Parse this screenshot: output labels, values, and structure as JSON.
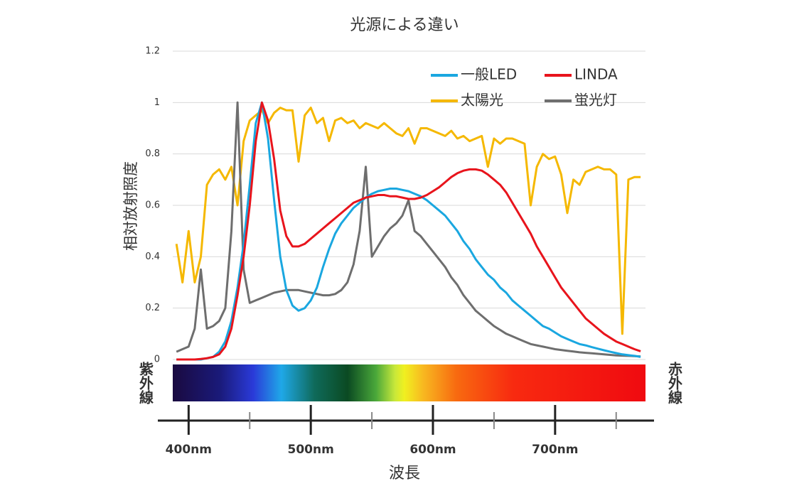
{
  "chart_data": {
    "type": "line",
    "title": "光源による違い",
    "x_label": "波長",
    "y_label": "相対放射照度",
    "left_band_label": "紫外線",
    "right_band_label": "赤外線",
    "x": [
      390,
      395,
      400,
      405,
      410,
      415,
      420,
      425,
      430,
      435,
      440,
      445,
      450,
      455,
      460,
      465,
      470,
      475,
      480,
      485,
      490,
      495,
      500,
      505,
      510,
      515,
      520,
      525,
      530,
      535,
      540,
      545,
      550,
      555,
      560,
      565,
      570,
      575,
      580,
      585,
      590,
      595,
      600,
      605,
      610,
      615,
      620,
      625,
      630,
      635,
      640,
      645,
      650,
      655,
      660,
      665,
      670,
      675,
      680,
      685,
      690,
      695,
      700,
      705,
      710,
      715,
      720,
      725,
      730,
      735,
      740,
      745,
      750,
      755,
      760,
      765,
      770
    ],
    "series": [
      {
        "name": "一般LED",
        "color": "#1aa7e0",
        "values": [
          0,
          0,
          0,
          0,
          0,
          0.005,
          0.01,
          0.03,
          0.07,
          0.15,
          0.28,
          0.45,
          0.68,
          0.92,
          1.0,
          0.86,
          0.62,
          0.4,
          0.27,
          0.21,
          0.19,
          0.2,
          0.23,
          0.28,
          0.36,
          0.43,
          0.49,
          0.53,
          0.56,
          0.59,
          0.61,
          0.63,
          0.645,
          0.655,
          0.66,
          0.665,
          0.665,
          0.66,
          0.655,
          0.645,
          0.635,
          0.62,
          0.6,
          0.58,
          0.56,
          0.53,
          0.5,
          0.46,
          0.43,
          0.39,
          0.36,
          0.33,
          0.31,
          0.28,
          0.26,
          0.23,
          0.21,
          0.19,
          0.17,
          0.15,
          0.13,
          0.12,
          0.105,
          0.09,
          0.08,
          0.07,
          0.06,
          0.055,
          0.048,
          0.042,
          0.036,
          0.03,
          0.025,
          0.02,
          0.017,
          0.014,
          0.01
        ]
      },
      {
        "name": "LINDA",
        "color": "#e8141c",
        "values": [
          0,
          0,
          0,
          0,
          0.002,
          0.005,
          0.01,
          0.02,
          0.05,
          0.12,
          0.25,
          0.4,
          0.6,
          0.85,
          1.0,
          0.93,
          0.78,
          0.58,
          0.48,
          0.44,
          0.44,
          0.45,
          0.47,
          0.49,
          0.51,
          0.53,
          0.55,
          0.57,
          0.59,
          0.61,
          0.62,
          0.63,
          0.635,
          0.64,
          0.64,
          0.635,
          0.635,
          0.63,
          0.625,
          0.625,
          0.63,
          0.64,
          0.655,
          0.67,
          0.69,
          0.71,
          0.725,
          0.735,
          0.74,
          0.74,
          0.735,
          0.72,
          0.7,
          0.68,
          0.65,
          0.61,
          0.57,
          0.53,
          0.49,
          0.44,
          0.4,
          0.36,
          0.32,
          0.28,
          0.25,
          0.22,
          0.19,
          0.16,
          0.14,
          0.12,
          0.1,
          0.085,
          0.07,
          0.06,
          0.05,
          0.04,
          0.032
        ]
      },
      {
        "name": "太陽光",
        "color": "#f5b800",
        "values": [
          0.45,
          0.3,
          0.5,
          0.3,
          0.4,
          0.68,
          0.72,
          0.74,
          0.7,
          0.75,
          0.6,
          0.85,
          0.93,
          0.95,
          0.97,
          0.92,
          0.96,
          0.98,
          0.97,
          0.97,
          0.77,
          0.95,
          0.98,
          0.92,
          0.94,
          0.85,
          0.93,
          0.94,
          0.92,
          0.93,
          0.9,
          0.92,
          0.91,
          0.9,
          0.92,
          0.9,
          0.88,
          0.87,
          0.9,
          0.84,
          0.9,
          0.9,
          0.89,
          0.88,
          0.87,
          0.89,
          0.86,
          0.87,
          0.85,
          0.86,
          0.87,
          0.75,
          0.86,
          0.84,
          0.86,
          0.86,
          0.85,
          0.84,
          0.6,
          0.75,
          0.8,
          0.78,
          0.79,
          0.72,
          0.57,
          0.7,
          0.68,
          0.73,
          0.74,
          0.75,
          0.74,
          0.74,
          0.72,
          0.1,
          0.7,
          0.71,
          0.71
        ]
      },
      {
        "name": "蛍光灯",
        "color": "#6e6e6e",
        "values": [
          0.03,
          0.04,
          0.05,
          0.12,
          0.35,
          0.12,
          0.13,
          0.15,
          0.2,
          0.5,
          1.0,
          0.35,
          0.22,
          0.23,
          0.24,
          0.25,
          0.26,
          0.265,
          0.27,
          0.27,
          0.27,
          0.265,
          0.26,
          0.255,
          0.25,
          0.25,
          0.255,
          0.27,
          0.3,
          0.37,
          0.5,
          0.75,
          0.4,
          0.44,
          0.48,
          0.51,
          0.53,
          0.56,
          0.62,
          0.5,
          0.48,
          0.45,
          0.42,
          0.39,
          0.36,
          0.32,
          0.29,
          0.25,
          0.22,
          0.19,
          0.17,
          0.15,
          0.13,
          0.115,
          0.1,
          0.09,
          0.08,
          0.07,
          0.06,
          0.055,
          0.05,
          0.045,
          0.04,
          0.037,
          0.034,
          0.031,
          0.028,
          0.026,
          0.024,
          0.022,
          0.02,
          0.018,
          0.016,
          0.015,
          0.014,
          0.013,
          0.012
        ]
      }
    ],
    "xlim": [
      387,
      774
    ],
    "xticks": [
      {
        "value": 400,
        "label": "400nm"
      },
      {
        "value": 500,
        "label": "500nm"
      },
      {
        "value": 600,
        "label": "600nm"
      },
      {
        "value": 700,
        "label": "700nm"
      }
    ],
    "xminorticks": [
      450,
      550,
      650,
      750
    ],
    "ylim": [
      0,
      1.2
    ],
    "yticks": [
      0,
      0.2,
      0.4,
      0.6,
      0.8,
      1,
      1.2
    ],
    "grid": true,
    "legend": "upper right"
  }
}
